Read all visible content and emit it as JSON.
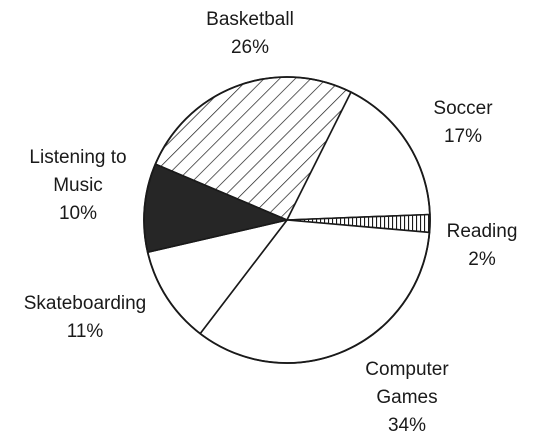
{
  "chart_data": {
    "type": "pie",
    "title": "",
    "slices": [
      {
        "label_lines": [
          "Basketball"
        ],
        "value_text": "26%",
        "value": 26,
        "fill": "diagonal-hatch"
      },
      {
        "label_lines": [
          "Soccer"
        ],
        "value_text": "17%",
        "value": 17,
        "fill": "white"
      },
      {
        "label_lines": [
          "Reading"
        ],
        "value_text": "2%",
        "value": 2,
        "fill": "vertical-hatch"
      },
      {
        "label_lines": [
          "Computer",
          "Games"
        ],
        "value_text": "34%",
        "value": 34,
        "fill": "white"
      },
      {
        "label_lines": [
          "Skateboarding"
        ],
        "value_text": "11%",
        "value": 11,
        "fill": "white"
      },
      {
        "label_lines": [
          "Listening to",
          "Music"
        ],
        "value_text": "10%",
        "value": 10,
        "fill": "solid-dark"
      }
    ],
    "colors": {
      "outline": "#1a1a1a",
      "dark_fill": "#262626",
      "white_fill": "#ffffff"
    }
  }
}
